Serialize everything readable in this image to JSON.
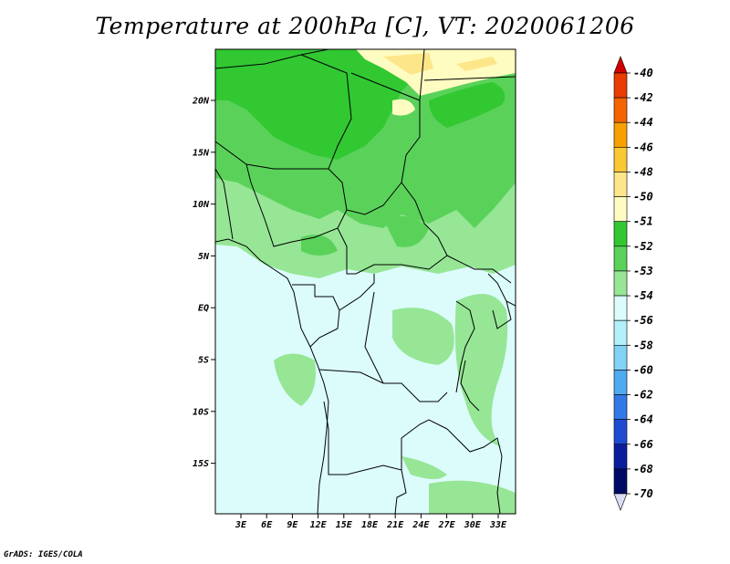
{
  "title": "Temperature at 200hPa [C], VT: 2020061206",
  "credit": "GrADS: IGES/COLA",
  "map": {
    "lat_ticks": [
      "20N",
      "15N",
      "10N",
      "5N",
      "EQ",
      "5S",
      "10S",
      "15S"
    ],
    "lon_ticks": [
      "3E",
      "6E",
      "9E",
      "12E",
      "15E",
      "18E",
      "21E",
      "24E",
      "27E",
      "30E",
      "33E"
    ]
  },
  "colorbar": {
    "labels": [
      "-40",
      "-42",
      "-44",
      "-46",
      "-48",
      "-50",
      "-51",
      "-52",
      "-53",
      "-54",
      "-56",
      "-58",
      "-60",
      "-62",
      "-64",
      "-66",
      "-68",
      "-70"
    ],
    "colors": [
      "#d20000",
      "#e83c00",
      "#f46400",
      "#f8a000",
      "#fac832",
      "#fde68a",
      "#fefcc0",
      "#32c832",
      "#5ad25a",
      "#96e696",
      "#dcfcfc",
      "#b4f0fa",
      "#82d2f5",
      "#50aaf0",
      "#3278e6",
      "#1e4bd2",
      "#0a1e9b",
      "#000a64",
      "#dcdcf5"
    ]
  }
}
